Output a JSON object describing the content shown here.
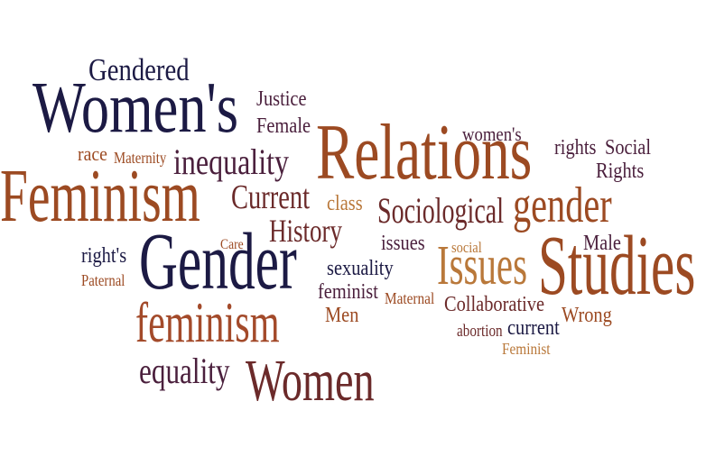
{
  "colors": {
    "navy": "#1c1a44",
    "plum": "#4a1f3c",
    "maroon": "#6b2a2a",
    "rust": "#9c4a22",
    "brown": "#8a5a22",
    "ochre": "#b9783a",
    "olive": "#7a5a2a",
    "sienna": "#a34a2a"
  },
  "words": {
    "gendered": "Gendered",
    "womens_big": "Women's",
    "justice": "Justice",
    "female": "Female",
    "relations": "Relations",
    "womens_small": "women's",
    "rights": "rights",
    "social_cap": "Social",
    "rights_cap": "Rights",
    "race": "race",
    "maternity": "Maternity",
    "inequality": "inequality",
    "feminism_big": "Feminism",
    "current_cap": "Current",
    "class": "class",
    "sociological": "Sociological",
    "gender_small": "gender",
    "history": "History",
    "care": "Care",
    "issues_small": "issues",
    "social_small": "social",
    "male": "Male",
    "rights_apos": "right's",
    "gender_big": "Gender",
    "issues_big": "Issues",
    "studies": "Studies",
    "paternal": "Paternal",
    "sexuality": "sexuality",
    "feminist": "feminist",
    "maternal": "Maternal",
    "collaborative": "Collaborative",
    "men": "Men",
    "wrong": "Wrong",
    "feminism_small": "feminism",
    "abortion": "abortion",
    "current_small": "current",
    "feminist_cap": "Feminist",
    "equality": "equality",
    "women": "Women"
  }
}
